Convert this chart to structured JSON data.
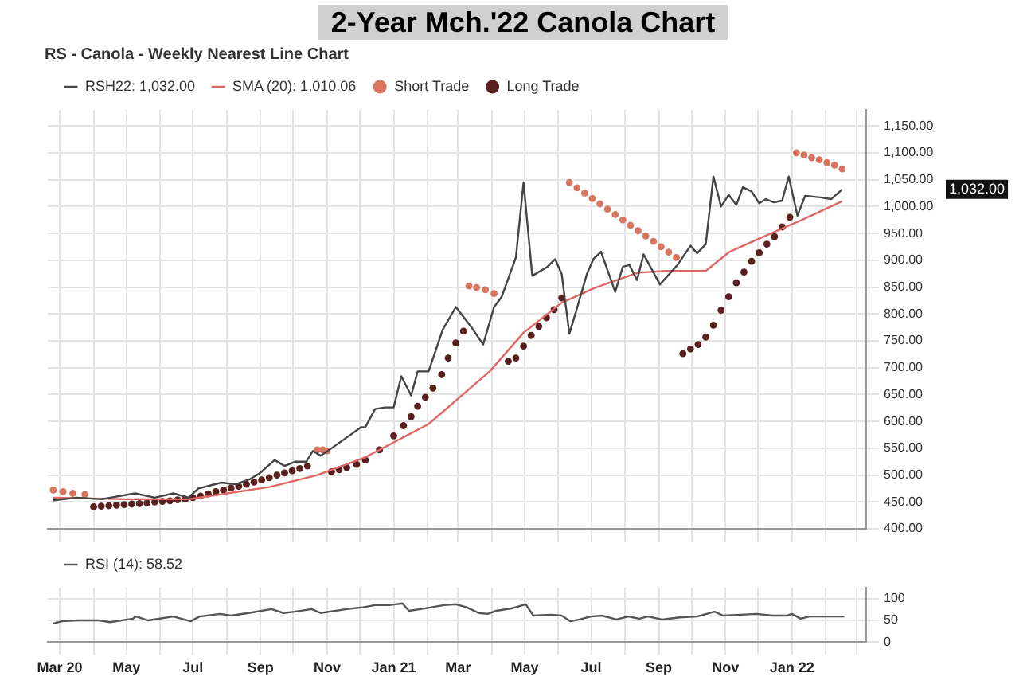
{
  "chart_data": [
    {
      "type": "line",
      "title": "2-Year Mch.'22 Canola Chart",
      "subtitle": "RS - Canola - Weekly Nearest Line Chart",
      "xlim": [
        "2020-02-19",
        "2022-03-10"
      ],
      "xticks": [
        {
          "value": "2020-03-01",
          "label": null
        },
        {
          "value": "2020-04-01",
          "label": null
        },
        {
          "value": "2020-05-01",
          "label": null
        },
        {
          "value": "2020-06-01",
          "label": null
        },
        {
          "value": "2020-07-01",
          "label": null
        },
        {
          "value": "2020-08-01",
          "label": null
        },
        {
          "value": "2020-09-01",
          "label": null
        },
        {
          "value": "2020-10-01",
          "label": null
        },
        {
          "value": "2020-11-01",
          "label": null
        },
        {
          "value": "2020-12-01",
          "label": null
        },
        {
          "value": "2021-01-01",
          "label": null
        },
        {
          "value": "2021-02-01",
          "label": null
        },
        {
          "value": "2021-03-01",
          "label": null
        },
        {
          "value": "2021-04-01",
          "label": null
        },
        {
          "value": "2021-05-01",
          "label": null
        },
        {
          "value": "2021-06-01",
          "label": null
        },
        {
          "value": "2021-07-01",
          "label": null
        },
        {
          "value": "2021-08-01",
          "label": null
        },
        {
          "value": "2021-09-01",
          "label": null
        },
        {
          "value": "2021-10-01",
          "label": null
        },
        {
          "value": "2021-11-01",
          "label": null
        },
        {
          "value": "2021-12-01",
          "label": null
        },
        {
          "value": "2022-01-01",
          "label": null
        },
        {
          "value": "2022-02-01",
          "label": null
        },
        {
          "value": "2022-03-01",
          "label": null
        }
      ],
      "ylim": [
        400,
        1180
      ],
      "yticks": [
        {
          "value": 400,
          "label": "400.00"
        },
        {
          "value": 450,
          "label": "450.00"
        },
        {
          "value": 500,
          "label": "500.00"
        },
        {
          "value": 550,
          "label": "550.00"
        },
        {
          "value": 600,
          "label": "600.00"
        },
        {
          "value": 650,
          "label": "650.00"
        },
        {
          "value": 700,
          "label": "700.00"
        },
        {
          "value": 750,
          "label": "750.00"
        },
        {
          "value": 800,
          "label": "800.00"
        },
        {
          "value": 850,
          "label": "850.00"
        },
        {
          "value": 900,
          "label": "900.00"
        },
        {
          "value": 950,
          "label": "950.00"
        },
        {
          "value": 1000,
          "label": "1,000.00"
        },
        {
          "value": 1050,
          "label": "1,050.00"
        },
        {
          "value": 1100,
          "label": "1,100.00"
        },
        {
          "value": 1150,
          "label": "1,150.00"
        }
      ],
      "tick_labels": "y",
      "grid": true,
      "legend": "top left",
      "annotations": [
        "1,032.00"
      ],
      "series": [
        {
          "name": "RSH22: 1,032.00",
          "marker": "none",
          "line_style": "solid",
          "color": "#444444",
          "x": [
            "2020-02-24",
            "2020-03-17",
            "2020-04-08",
            "2020-05-09",
            "2020-05-27",
            "2020-06-13",
            "2020-06-27",
            "2020-07-06",
            "2020-07-27",
            "2020-08-09",
            "2020-08-22",
            "2020-08-31",
            "2020-09-14",
            "2020-09-23",
            "2020-10-03",
            "2020-10-13",
            "2020-10-19",
            "2020-10-26",
            "2020-11-03",
            "2020-11-19",
            "2020-12-02",
            "2020-12-06",
            "2020-12-15",
            "2020-12-24",
            "2021-01-01",
            "2021-01-08",
            "2021-01-17",
            "2021-01-23",
            "2021-02-02",
            "2021-02-15",
            "2021-02-27",
            "2021-03-13",
            "2021-03-24",
            "2021-04-03",
            "2021-04-10",
            "2021-04-23",
            "2021-04-30",
            "2021-05-08",
            "2021-05-22",
            "2021-05-29",
            "2021-06-04",
            "2021-06-11",
            "2021-06-17",
            "2021-06-27",
            "2021-07-03",
            "2021-07-10",
            "2021-07-23",
            "2021-07-30",
            "2021-08-05",
            "2021-08-12",
            "2021-08-18",
            "2021-09-02",
            "2021-09-18",
            "2021-09-30",
            "2021-10-06",
            "2021-10-14",
            "2021-10-21",
            "2021-10-28",
            "2021-11-04",
            "2021-11-11",
            "2021-11-17",
            "2021-11-25",
            "2021-12-02",
            "2021-12-08",
            "2021-12-15",
            "2021-12-23",
            "2021-12-29",
            "2022-01-06",
            "2022-01-13",
            "2022-01-27",
            "2022-02-06",
            "2022-02-16"
          ],
          "values": [
            453,
            458,
            455,
            466,
            458,
            466,
            458,
            475,
            486,
            483,
            492,
            503,
            528,
            517,
            525,
            525,
            545,
            536,
            547,
            570,
            589,
            589,
            623,
            626,
            626,
            684,
            648,
            693,
            693,
            771,
            813,
            776,
            743,
            813,
            832,
            905,
            1045,
            871,
            888,
            902,
            874,
            763,
            804,
            874,
            902,
            916,
            841,
            888,
            891,
            863,
            911,
            855,
            891,
            927,
            913,
            930,
            1056,
            1000,
            1022,
            1003,
            1036,
            1028,
            1006,
            1014,
            1008,
            1011,
            1056,
            983,
            1020,
            1017,
            1014,
            1032
          ]
        },
        {
          "name": "SMA (20): 1,010.06",
          "marker": "none",
          "line_style": "solid",
          "color": "#e06666",
          "x": [
            "2020-02-24",
            "2020-05-01",
            "2020-06-27",
            "2020-09-10",
            "2020-10-23",
            "2020-12-06",
            "2021-02-02",
            "2021-03-30",
            "2021-04-30",
            "2021-06-04",
            "2021-07-05",
            "2021-08-13",
            "2021-09-08",
            "2021-10-14",
            "2021-11-05",
            "2021-12-06",
            "2022-01-10",
            "2022-02-16"
          ],
          "values": [
            458,
            455,
            455,
            478,
            500,
            533,
            595,
            693,
            765,
            821,
            849,
            877,
            880,
            880,
            916,
            944,
            975,
            1010
          ]
        },
        {
          "name": "Short Trade",
          "type": "scatter",
          "marker": "circle",
          "color": "#d9755f",
          "x": [
            "2020-02-24",
            "2020-03-04",
            "2020-03-13",
            "2020-03-24",
            "2020-10-23",
            "2020-10-28",
            "2020-11-01",
            "2021-03-11",
            "2021-03-18",
            "2021-03-26",
            "2021-04-03",
            "2021-06-11",
            "2021-06-18",
            "2021-06-25",
            "2021-07-02",
            "2021-07-09",
            "2021-07-16",
            "2021-07-23",
            "2021-07-30",
            "2021-08-06",
            "2021-08-13",
            "2021-08-20",
            "2021-08-27",
            "2021-09-03",
            "2021-09-10",
            "2021-09-17",
            "2022-01-05",
            "2022-01-12",
            "2022-01-19",
            "2022-01-26",
            "2022-02-02",
            "2022-02-09",
            "2022-02-16"
          ],
          "values": [
            472,
            469,
            466,
            464,
            547,
            547,
            545,
            852,
            849,
            845,
            838,
            1045,
            1035,
            1025,
            1015,
            1005,
            995,
            985,
            975,
            965,
            955,
            945,
            935,
            925,
            915,
            905,
            1100,
            1096,
            1091,
            1087,
            1082,
            1077,
            1070
          ]
        },
        {
          "name": "Long Trade",
          "type": "scatter",
          "marker": "circle",
          "color": "#5a1f1f",
          "x": [
            "2020-04-01",
            "2020-04-08",
            "2020-04-15",
            "2020-04-22",
            "2020-04-29",
            "2020-05-06",
            "2020-05-13",
            "2020-05-20",
            "2020-05-27",
            "2020-06-03",
            "2020-06-10",
            "2020-06-17",
            "2020-06-24",
            "2020-07-01",
            "2020-07-08",
            "2020-07-15",
            "2020-07-22",
            "2020-07-29",
            "2020-08-05",
            "2020-08-12",
            "2020-08-19",
            "2020-08-26",
            "2020-09-02",
            "2020-09-09",
            "2020-09-16",
            "2020-09-23",
            "2020-09-30",
            "2020-10-07",
            "2020-10-14",
            "2020-11-05",
            "2020-11-12",
            "2020-11-19",
            "2020-11-28",
            "2020-12-06",
            "2020-12-19",
            "2021-01-01",
            "2021-01-10",
            "2021-01-17",
            "2021-01-23",
            "2021-01-30",
            "2021-02-06",
            "2021-02-14",
            "2021-02-20",
            "2021-02-27",
            "2021-03-06",
            "2021-04-16",
            "2021-04-23",
            "2021-04-30",
            "2021-05-07",
            "2021-05-14",
            "2021-05-21",
            "2021-05-28",
            "2021-06-04",
            "2021-09-23",
            "2021-09-30",
            "2021-10-07",
            "2021-10-14",
            "2021-10-21",
            "2021-10-28",
            "2021-11-04",
            "2021-11-11",
            "2021-11-18",
            "2021-11-25",
            "2021-12-02",
            "2021-12-09",
            "2021-12-16",
            "2021-12-23",
            "2021-12-30"
          ],
          "values": [
            441,
            442,
            443,
            444,
            445,
            446,
            447,
            448,
            450,
            451,
            452,
            454,
            455,
            458,
            461,
            465,
            469,
            472,
            476,
            479,
            483,
            487,
            491,
            495,
            500,
            504,
            508,
            512,
            517,
            506,
            510,
            514,
            520,
            528,
            547,
            573,
            592,
            609,
            628,
            645,
            662,
            687,
            718,
            746,
            768,
            712,
            718,
            740,
            760,
            777,
            793,
            808,
            830,
            726,
            735,
            743,
            757,
            779,
            807,
            832,
            858,
            878,
            898,
            914,
            930,
            944,
            962,
            980
          ]
        }
      ]
    },
    {
      "type": "line",
      "xlim": [
        "2020-02-19",
        "2022-03-10"
      ],
      "xticks": [
        {
          "value": "2020-03-01",
          "label": "Mar 20"
        },
        {
          "value": "2020-04-01",
          "label": null
        },
        {
          "value": "2020-05-01",
          "label": "May"
        },
        {
          "value": "2020-06-01",
          "label": null
        },
        {
          "value": "2020-07-01",
          "label": "Jul"
        },
        {
          "value": "2020-08-01",
          "label": null
        },
        {
          "value": "2020-09-01",
          "label": "Sep"
        },
        {
          "value": "2020-10-01",
          "label": null
        },
        {
          "value": "2020-11-01",
          "label": "Nov"
        },
        {
          "value": "2020-12-01",
          "label": null
        },
        {
          "value": "2021-01-01",
          "label": "Jan 21"
        },
        {
          "value": "2021-02-01",
          "label": null
        },
        {
          "value": "2021-03-01",
          "label": "Mar"
        },
        {
          "value": "2021-04-01",
          "label": null
        },
        {
          "value": "2021-05-01",
          "label": "May"
        },
        {
          "value": "2021-06-01",
          "label": null
        },
        {
          "value": "2021-07-01",
          "label": "Jul"
        },
        {
          "value": "2021-08-01",
          "label": null
        },
        {
          "value": "2021-09-01",
          "label": "Sep"
        },
        {
          "value": "2021-10-01",
          "label": null
        },
        {
          "value": "2021-11-01",
          "label": "Nov"
        },
        {
          "value": "2021-12-01",
          "label": null
        },
        {
          "value": "2022-01-01",
          "label": "Jan 22"
        },
        {
          "value": "2022-02-01",
          "label": null
        },
        {
          "value": "2022-03-01",
          "label": null
        }
      ],
      "ylim": [
        0,
        125
      ],
      "yticks": [
        0,
        50,
        100
      ],
      "grid": true,
      "legend": "top left",
      "series": [
        {
          "name": "RSI (14): 58.52",
          "marker": "none",
          "line_style": "solid",
          "color": "#555555",
          "x": [
            "2020-02-24",
            "2020-03-03",
            "2020-03-18",
            "2020-04-06",
            "2020-04-16",
            "2020-05-07",
            "2020-05-10",
            "2020-05-21",
            "2020-06-13",
            "2020-06-29",
            "2020-07-07",
            "2020-07-26",
            "2020-08-05",
            "2020-08-21",
            "2020-09-11",
            "2020-09-22",
            "2020-10-02",
            "2020-10-18",
            "2020-10-26",
            "2020-11-19",
            "2020-12-04",
            "2020-12-15",
            "2020-12-28",
            "2021-01-09",
            "2021-01-15",
            "2021-01-26",
            "2021-02-16",
            "2021-02-27",
            "2021-03-09",
            "2021-03-20",
            "2021-03-28",
            "2021-04-05",
            "2021-04-20",
            "2021-05-02",
            "2021-05-09",
            "2021-05-25",
            "2021-06-04",
            "2021-06-12",
            "2021-06-20",
            "2021-07-01",
            "2021-07-11",
            "2021-07-24",
            "2021-08-04",
            "2021-08-14",
            "2021-08-22",
            "2021-09-04",
            "2021-09-20",
            "2021-10-06",
            "2021-10-22",
            "2021-10-30",
            "2021-11-15",
            "2021-11-30",
            "2021-12-14",
            "2021-12-27",
            "2022-01-01",
            "2022-01-09",
            "2022-01-17",
            "2022-02-10",
            "2022-02-18"
          ],
          "values": [
            43,
            48,
            50,
            50,
            46,
            54,
            59,
            50,
            59,
            48,
            59,
            65,
            61,
            67,
            76,
            67,
            70,
            76,
            67,
            76,
            80,
            85,
            85,
            89,
            72,
            76,
            85,
            87,
            80,
            67,
            65,
            72,
            78,
            87,
            61,
            63,
            61,
            48,
            52,
            59,
            61,
            52,
            59,
            54,
            59,
            52,
            57,
            59,
            70,
            61,
            63,
            65,
            61,
            61,
            65,
            54,
            59,
            59,
            59
          ]
        }
      ]
    }
  ]
}
